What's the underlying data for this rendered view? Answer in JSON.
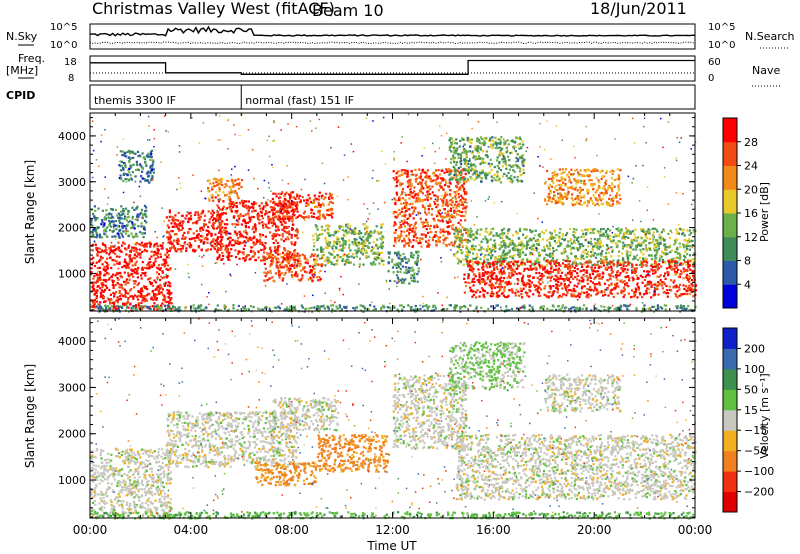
{
  "header": {
    "title": "Christmas Valley West (fitACF)",
    "beam": "Beam 10",
    "date": "18/Jun/2011"
  },
  "summary": {
    "nsky_label": "N.Sky",
    "nsearch_label": "N.Search",
    "nsky_ticks": [
      "10^5",
      "10^0"
    ],
    "freq_label": "Freq.",
    "freq_unit": "[MHz]",
    "freq_ticks": [
      18,
      8
    ],
    "nave_label": "Nave",
    "nave_ticks": [
      60,
      0
    ],
    "cpid_label": "CPID",
    "cpid_segments": [
      {
        "name": "themis 3300 IF",
        "start": 0,
        "end": 6
      },
      {
        "name": "normal (fast) 151 IF",
        "start": 6,
        "end": 24
      }
    ],
    "freq_steps": [
      {
        "start": 0,
        "end": 3,
        "mhz": 15.3
      },
      {
        "start": 3,
        "end": 6,
        "mhz": 11.3
      },
      {
        "start": 6,
        "end": 15,
        "mhz": 10.7
      },
      {
        "start": 15,
        "end": 24,
        "mhz": 16.2
      }
    ]
  },
  "chart_data": [
    {
      "type": "heatmap",
      "quantity": "power",
      "ylabel": "Slant Range [km]",
      "xlabel": "",
      "ylim": [
        180,
        4500
      ],
      "xlim": [
        0,
        24
      ],
      "yticks": [
        1000,
        2000,
        3000,
        4000
      ],
      "colorbar": {
        "label": "Power [dB]",
        "ticks": [
          4,
          8,
          12,
          16,
          20,
          24,
          28
        ],
        "range": [
          0,
          30
        ],
        "colors": [
          "#0000dd",
          "#2d5aa8",
          "#3e8c5a",
          "#6cb04a",
          "#e8c82a",
          "#f28a1a",
          "#f24a12",
          "#ff0000"
        ]
      },
      "regions": [
        {
          "t0": 0,
          "t1": 3.2,
          "r0": 200,
          "r1": 1700,
          "value": 28
        },
        {
          "t0": 0,
          "t1": 2.2,
          "r0": 1800,
          "r1": 2500,
          "value": 8
        },
        {
          "t0": 1.1,
          "t1": 2.5,
          "r0": 3000,
          "r1": 3700,
          "value": 8
        },
        {
          "t0": 3.0,
          "t1": 5.2,
          "r0": 1500,
          "r1": 2400,
          "value": 28
        },
        {
          "t0": 5.0,
          "t1": 8.2,
          "r0": 1300,
          "r1": 2600,
          "value": 27
        },
        {
          "t0": 7.2,
          "t1": 9.6,
          "r0": 2200,
          "r1": 2800,
          "value": 26
        },
        {
          "t0": 4.6,
          "t1": 6.0,
          "r0": 2600,
          "r1": 3100,
          "value": 22
        },
        {
          "t0": 6.8,
          "t1": 9.2,
          "r0": 850,
          "r1": 1450,
          "value": 24
        },
        {
          "t0": 8.8,
          "t1": 11.6,
          "r0": 1200,
          "r1": 2100,
          "value": 13
        },
        {
          "t0": 12.0,
          "t1": 14.9,
          "r0": 1600,
          "r1": 3300,
          "value": 24
        },
        {
          "t0": 11.8,
          "t1": 13.0,
          "r0": 800,
          "r1": 1500,
          "value": 10
        },
        {
          "t0": 14.4,
          "t1": 24,
          "r0": 1200,
          "r1": 2000,
          "value": 13
        },
        {
          "t0": 14.8,
          "t1": 24,
          "r0": 500,
          "r1": 1300,
          "value": 27
        },
        {
          "t0": 14.2,
          "t1": 17.2,
          "r0": 3000,
          "r1": 4000,
          "value": 12
        },
        {
          "t0": 18.0,
          "t1": 21.0,
          "r0": 2500,
          "r1": 3300,
          "value": 20
        },
        {
          "t0": 0,
          "t1": 24,
          "r0": 190,
          "r1": 330,
          "value": 10
        }
      ]
    },
    {
      "type": "heatmap",
      "quantity": "velocity",
      "ylabel": "Slant Range [km]",
      "xlabel": "Time UT",
      "ylim": [
        180,
        4500
      ],
      "xlim": [
        0,
        24
      ],
      "yticks": [
        1000,
        2000,
        3000,
        4000
      ],
      "xticks": [
        "00:00",
        "04:00",
        "08:00",
        "12:00",
        "16:00",
        "20:00",
        "00:00"
      ],
      "colorbar": {
        "label": "Velocity [m s⁻¹]",
        "ticks": [
          "200",
          "100",
          "50",
          "15",
          "−15",
          "−50",
          "−100",
          "−200"
        ],
        "colors": [
          "#1020c8",
          "#3a6ab0",
          "#3e9050",
          "#60c040",
          "#c8c8c0",
          "#f0b020",
          "#f08020",
          "#f03010",
          "#e00000"
        ]
      },
      "regions": [
        {
          "t0": 0,
          "t1": 3.2,
          "r0": 250,
          "r1": 1700,
          "value": 0
        },
        {
          "t0": 3.0,
          "t1": 8.2,
          "r0": 1300,
          "r1": 2500,
          "value": 0
        },
        {
          "t0": 7.2,
          "t1": 9.8,
          "r0": 2100,
          "r1": 2800,
          "value": 0
        },
        {
          "t0": 6.5,
          "t1": 9.0,
          "r0": 900,
          "r1": 1400,
          "value": -60
        },
        {
          "t0": 9.0,
          "t1": 11.8,
          "r0": 1200,
          "r1": 2000,
          "value": -60
        },
        {
          "t0": 12.0,
          "t1": 14.9,
          "r0": 1700,
          "r1": 3300,
          "value": 0
        },
        {
          "t0": 14.5,
          "t1": 24,
          "r0": 600,
          "r1": 2000,
          "value": 0
        },
        {
          "t0": 14.2,
          "t1": 17.2,
          "r0": 3000,
          "r1": 4000,
          "value": 20
        },
        {
          "t0": 18.0,
          "t1": 21.0,
          "r0": 2500,
          "r1": 3300,
          "value": 0
        },
        {
          "t0": 0,
          "t1": 24,
          "r0": 190,
          "r1": 330,
          "value": 40
        }
      ]
    }
  ]
}
